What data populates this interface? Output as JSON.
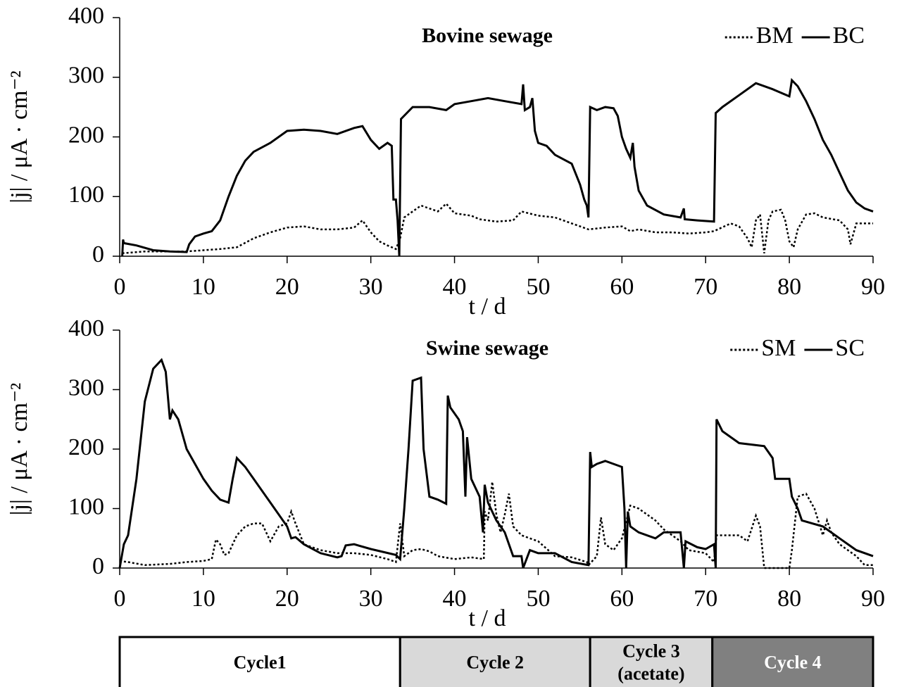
{
  "chart_data": [
    {
      "type": "line",
      "title": "Bovine sewage",
      "xlabel": "t / d",
      "ylabel": "|j| / μA · cm⁻²",
      "xlim": [
        0,
        90
      ],
      "xticks": [
        0,
        10,
        20,
        30,
        40,
        50,
        60,
        70,
        80,
        90
      ],
      "ylim": [
        0,
        400
      ],
      "yticks": [
        0,
        100,
        200,
        300,
        400
      ],
      "legend": "upper right",
      "series": [
        {
          "name": "BM",
          "color": "#000000",
          "style": "dotted",
          "x": [
            0.3,
            3,
            6,
            8,
            10,
            12,
            14,
            16,
            18,
            20,
            22,
            24,
            26,
            28,
            29,
            30,
            31,
            32,
            33,
            33.5,
            34,
            35,
            36,
            37,
            38,
            39,
            40,
            42,
            43,
            45,
            47,
            48,
            50,
            52,
            54,
            55,
            56,
            58,
            60,
            61,
            62,
            64,
            66,
            68,
            70,
            71,
            73,
            74,
            75,
            75.5,
            76,
            76.5,
            77,
            77.5,
            78,
            79,
            79.5,
            80,
            80.5,
            81,
            82,
            83,
            84,
            86,
            87,
            87.3,
            88,
            90
          ],
          "values": [
            5,
            8,
            8,
            8,
            10,
            12,
            15,
            30,
            40,
            48,
            50,
            45,
            45,
            48,
            60,
            40,
            25,
            18,
            12,
            30,
            65,
            75,
            85,
            80,
            75,
            88,
            72,
            68,
            62,
            58,
            60,
            75,
            68,
            65,
            55,
            50,
            45,
            48,
            50,
            42,
            45,
            40,
            40,
            38,
            40,
            42,
            55,
            50,
            30,
            15,
            60,
            70,
            5,
            60,
            75,
            78,
            60,
            25,
            15,
            45,
            70,
            72,
            65,
            60,
            45,
            20,
            55,
            55
          ]
        },
        {
          "name": "BC",
          "color": "#000000",
          "style": "solid",
          "x": [
            0.3,
            0.4,
            0.5,
            2,
            4,
            6,
            8,
            8.3,
            9,
            10,
            11,
            12,
            13,
            14,
            15,
            16,
            18,
            20,
            22,
            24,
            26,
            28,
            29,
            30,
            31,
            32,
            32.5,
            32.7,
            33,
            33.2,
            33.4,
            33.6,
            35,
            37,
            39,
            40,
            42,
            44,
            46,
            48,
            48.2,
            48.4,
            49,
            49.3,
            49.6,
            50,
            51,
            52,
            54,
            55,
            55.5,
            55.8,
            56,
            56.2,
            57,
            58,
            59,
            59.5,
            60,
            60.5,
            61,
            61.3,
            61.5,
            62,
            63,
            65,
            67,
            67.4,
            67.5,
            69,
            71,
            71.2,
            72,
            74,
            76,
            78,
            80,
            80.3,
            81,
            82,
            83,
            84,
            85,
            86,
            87,
            88,
            89,
            90
          ],
          "values": [
            0,
            28,
            22,
            18,
            10,
            8,
            7,
            20,
            33,
            38,
            42,
            60,
            100,
            135,
            160,
            175,
            190,
            210,
            212,
            210,
            205,
            215,
            218,
            195,
            180,
            190,
            185,
            95,
            95,
            60,
            0,
            230,
            250,
            250,
            245,
            255,
            260,
            265,
            260,
            255,
            288,
            245,
            250,
            265,
            210,
            190,
            185,
            170,
            155,
            120,
            95,
            85,
            65,
            250,
            245,
            250,
            248,
            235,
            200,
            180,
            165,
            190,
            150,
            110,
            85,
            70,
            65,
            80,
            62,
            60,
            58,
            240,
            250,
            270,
            290,
            280,
            268,
            295,
            285,
            260,
            230,
            195,
            170,
            140,
            110,
            90,
            80,
            75
          ]
        }
      ]
    },
    {
      "type": "line",
      "title": "Swine sewage",
      "xlabel": "t / d",
      "ylabel": "|j| / μA · cm⁻²",
      "xlim": [
        0,
        90
      ],
      "xticks": [
        0,
        10,
        20,
        30,
        40,
        50,
        60,
        70,
        80,
        90
      ],
      "ylim": [
        0,
        400
      ],
      "yticks": [
        0,
        100,
        200,
        300,
        400
      ],
      "legend": "upper right",
      "series": [
        {
          "name": "SM",
          "color": "#000000",
          "style": "dotted",
          "x": [
            0,
            1,
            3,
            6,
            8,
            10,
            11,
            11.5,
            12,
            12.5,
            13,
            14,
            15,
            16,
            17,
            18,
            19,
            20,
            20.5,
            21,
            22,
            24,
            26,
            28,
            30,
            32,
            33,
            33.5,
            34,
            35,
            36,
            37,
            38,
            40,
            42,
            43.5,
            43.6,
            44,
            44.5,
            45,
            45.5,
            46,
            46.5,
            47,
            48,
            50,
            52,
            54,
            55.8,
            56,
            57,
            57.5,
            58,
            59,
            60,
            61,
            62,
            64,
            65,
            67,
            68,
            70,
            71,
            71.3,
            74,
            75,
            76,
            76.5,
            77,
            80,
            80.3,
            81,
            82,
            83,
            84,
            84.5,
            85,
            86,
            88,
            89,
            90
          ],
          "values": [
            12,
            10,
            5,
            7,
            10,
            12,
            15,
            48,
            40,
            22,
            25,
            55,
            70,
            75,
            75,
            45,
            70,
            75,
            95,
            75,
            40,
            30,
            25,
            25,
            22,
            15,
            10,
            75,
            20,
            30,
            32,
            28,
            20,
            15,
            18,
            15,
            95,
            80,
            145,
            90,
            60,
            90,
            125,
            70,
            55,
            45,
            20,
            18,
            10,
            5,
            20,
            85,
            40,
            30,
            50,
            105,
            100,
            80,
            65,
            45,
            30,
            25,
            10,
            55,
            55,
            45,
            88,
            70,
            0,
            0,
            30,
            120,
            125,
            100,
            55,
            80,
            60,
            40,
            20,
            5,
            5
          ]
        },
        {
          "name": "SC",
          "color": "#000000",
          "style": "solid",
          "x": [
            0,
            0.5,
            1,
            2,
            3,
            4,
            5,
            5.5,
            6,
            6.3,
            7,
            8,
            10,
            11,
            12,
            13,
            13.5,
            14,
            15,
            16,
            18,
            20,
            20.5,
            21,
            22,
            24,
            26,
            26.5,
            27,
            28,
            30,
            33,
            33.5,
            34,
            34.5,
            35,
            36,
            36.3,
            37,
            38,
            39,
            39.2,
            39.5,
            40.5,
            41,
            41.3,
            41.5,
            42,
            43,
            43.4,
            43.6,
            44,
            45,
            46,
            47,
            48,
            48.2,
            49,
            50,
            52,
            54,
            56,
            56.2,
            56.4,
            57,
            58,
            60,
            60.3,
            60.5,
            60.7,
            61,
            62,
            64,
            65,
            67,
            67.4,
            67.6,
            69,
            70,
            71,
            71.2,
            71.3,
            72,
            74,
            77,
            78,
            78.3,
            80,
            80.3,
            81,
            81.5,
            84,
            86,
            88,
            90
          ],
          "values": [
            0,
            40,
            55,
            150,
            280,
            335,
            350,
            330,
            250,
            265,
            250,
            200,
            150,
            130,
            115,
            110,
            150,
            185,
            170,
            150,
            110,
            70,
            50,
            52,
            40,
            25,
            18,
            20,
            38,
            40,
            32,
            22,
            15,
            100,
            200,
            315,
            320,
            200,
            120,
            115,
            108,
            290,
            270,
            250,
            230,
            120,
            220,
            150,
            120,
            60,
            140,
            110,
            80,
            60,
            20,
            20,
            0,
            30,
            25,
            25,
            10,
            5,
            195,
            170,
            175,
            180,
            170,
            100,
            0,
            95,
            70,
            60,
            50,
            60,
            60,
            0,
            45,
            35,
            32,
            40,
            0,
            250,
            230,
            210,
            205,
            185,
            150,
            150,
            120,
            100,
            80,
            70,
            50,
            30,
            20
          ]
        }
      ]
    }
  ],
  "cycles": [
    {
      "label": [
        "Cycle1"
      ],
      "start": 0,
      "end": 33.5,
      "color": "#ffffff",
      "text_color": "#000000"
    },
    {
      "label": [
        "Cycle 2"
      ],
      "start": 33.5,
      "end": 56.2,
      "color": "#d9d9d9",
      "text_color": "#000000"
    },
    {
      "label": [
        "Cycle 3",
        "(acetate)"
      ],
      "start": 56.2,
      "end": 70.8,
      "color": "#d9d9d9",
      "text_color": "#000000"
    },
    {
      "label": [
        "Cycle 4"
      ],
      "start": 70.8,
      "end": 90,
      "color": "#808080",
      "text_color": "#ffffff"
    }
  ]
}
